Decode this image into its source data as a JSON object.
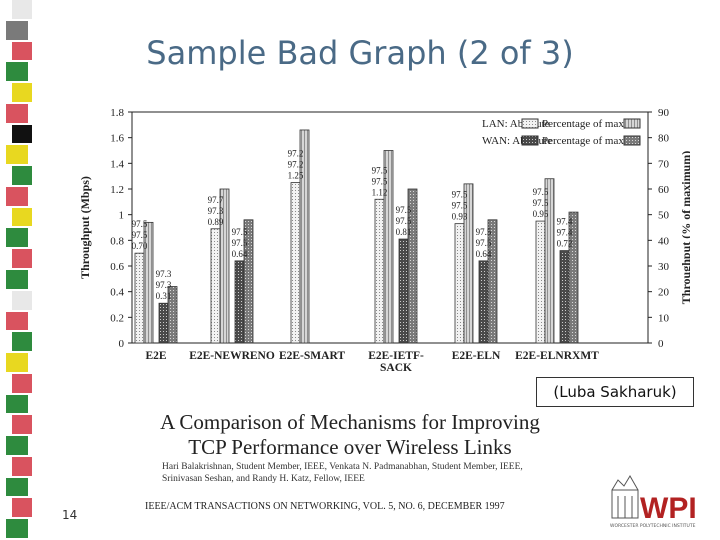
{
  "slide": {
    "title": "Sample Bad Graph (2 of 3)",
    "credit": "(Luba Sakharuk)",
    "number": "14",
    "logo_text": "WPI",
    "logo_subtext": "WORCESTER POLYTECHNIC INSTITUTE"
  },
  "paper": {
    "title_line1": "A Comparison of Mechanisms for Improving",
    "title_line2": "TCP Performance over Wireless Links",
    "authors_line1": "Hari Balakrishnan, Student Member, IEEE, Venkata N. Padmanabhan, Student Member, IEEE,",
    "authors_line2": "Srinivasan Seshan, and Randy H. Katz, Fellow, IEEE",
    "journal": "IEEE/ACM TRANSACTIONS ON NETWORKING, VOL. 5, NO. 6, DECEMBER 1997"
  },
  "colors": {
    "stripe": [
      "#e8e8e8",
      "#7a7a7a",
      "#d9535f",
      "#2e8b3e",
      "#e8d820",
      "#d9535f",
      "#111111",
      "#e8d820",
      "#2e8b3e",
      "#d9535f",
      "#e8d820",
      "#2e8b3e",
      "#d9535f",
      "#2e8b3e",
      "#e8e8e8",
      "#d9535f",
      "#2e8b3e",
      "#e8d820",
      "#d9535f",
      "#2e8b3e",
      "#d9535f",
      "#2e8b3e",
      "#d9535f",
      "#2e8b3e",
      "#d9535f",
      "#2e8b3e"
    ],
    "title": "#4a6a86",
    "lan_wan_absolute": "#f0f0f0",
    "lan_percentage": "#bdbdbd",
    "wan_absolute": "#555555",
    "wan_percentage": "#8a8a8a"
  },
  "chart_data": {
    "type": "bar",
    "categories": [
      "E2E",
      "E2E-NEWRENO",
      "E2E-SMART",
      "E2E-IETF-SACK",
      "E2E-ELN",
      "E2E-ELNRXMT"
    ],
    "ylabel": "Throughput (Mbps)",
    "ylabel2": "Throughput (% of maximum)",
    "ylim": [
      0,
      1.8
    ],
    "ylim2": [
      0,
      90
    ],
    "yticks": [
      "0",
      "0.2",
      "0.4",
      "0.6",
      "0.8",
      "1",
      "1.2",
      "1.4",
      "1.6",
      "1.8"
    ],
    "yticks2": [
      "0",
      "10",
      "20",
      "30",
      "40",
      "50",
      "60",
      "70",
      "80",
      "90"
    ],
    "legend_position": "top-right",
    "series": [
      {
        "name": "LAN: Absolute",
        "axis": "left",
        "values": [
          0.7,
          0.89,
          1.25,
          1.12,
          0.93,
          0.95
        ]
      },
      {
        "name": "Percentage of max",
        "axis": "right",
        "values": [
          47,
          60,
          83,
          75,
          62,
          64
        ]
      },
      {
        "name": "WAN: Absolute",
        "axis": "left",
        "values": [
          0.31,
          0.64,
          null,
          0.81,
          0.64,
          0.72
        ]
      },
      {
        "name": "Percentage of max",
        "axis": "right",
        "values": [
          22,
          48,
          null,
          60,
          48,
          51
        ]
      }
    ],
    "annotations": [
      {
        "category": "E2E",
        "series": 0,
        "lines": [
          "97.5",
          "97.5",
          "0.70"
        ]
      },
      {
        "category": "E2E",
        "series": 2,
        "lines": [
          "97.3",
          "97.3",
          "0.31"
        ]
      },
      {
        "category": "E2E-NEWRENO",
        "series": 0,
        "lines": [
          "97.7",
          "97.3",
          "0.89"
        ]
      },
      {
        "category": "E2E-NEWRENO",
        "series": 2,
        "lines": [
          "97.5",
          "97.5",
          "0.64"
        ]
      },
      {
        "category": "E2E-SMART",
        "series": 0,
        "lines": [
          "97.2",
          "97.2",
          "1.25"
        ]
      },
      {
        "category": "E2E-IETF-SACK",
        "series": 0,
        "lines": [
          "97.5",
          "97.5",
          "1.12"
        ]
      },
      {
        "category": "E2E-IETF-SACK",
        "series": 2,
        "lines": [
          "97.5",
          "97.5",
          "0.81"
        ]
      },
      {
        "category": "E2E-ELN",
        "series": 0,
        "lines": [
          "97.5",
          "97.5",
          "0.93"
        ]
      },
      {
        "category": "E2E-ELN",
        "series": 2,
        "lines": [
          "97.5",
          "97.5",
          "0.64"
        ]
      },
      {
        "category": "E2E-ELNRXMT",
        "series": 0,
        "lines": [
          "97.5",
          "97.5",
          "0.95"
        ]
      },
      {
        "category": "E2E-ELNRXMT",
        "series": 2,
        "lines": [
          "97.4",
          "97.4",
          "0.72"
        ]
      }
    ]
  }
}
